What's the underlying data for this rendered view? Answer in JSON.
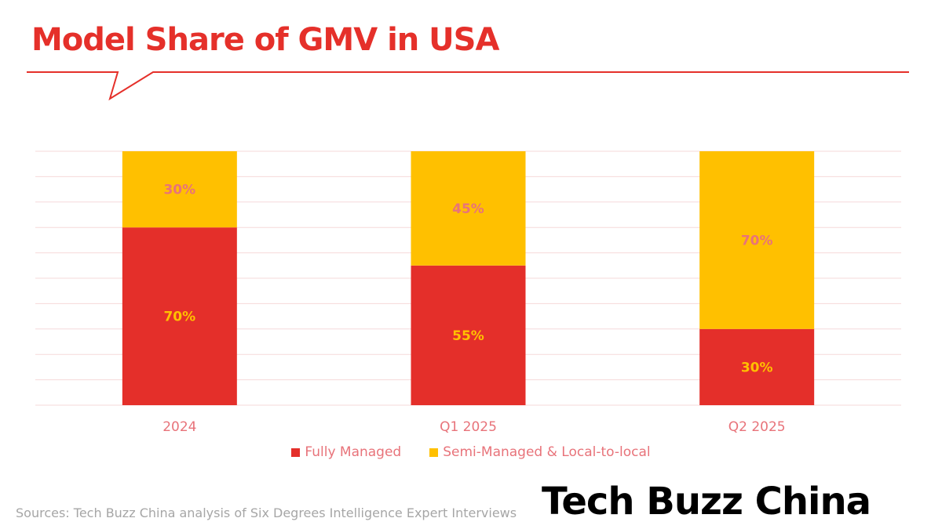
{
  "title": "Model Share of GMV in USA",
  "source": "Sources: Tech Buzz China analysis of Six Degrees Intelligence Expert Interviews",
  "logo": "Tech Buzz China",
  "colors": {
    "fully": "#e42f2a",
    "semi": "#ffc000",
    "label_on_red": "#ffc000",
    "label_on_yellow": "#e8737a",
    "axis_text": "#e8737a",
    "grid": "#f6d9da",
    "accent": "#e5302a"
  },
  "chart_data": {
    "type": "bar",
    "stacked": true,
    "title": "Model Share of GMV in USA",
    "categories": [
      "2024",
      "Q1 2025",
      "Q2 2025"
    ],
    "series": [
      {
        "name": "Fully Managed",
        "values": [
          70,
          55,
          30
        ],
        "labels": [
          "70%",
          "55%",
          "30%"
        ]
      },
      {
        "name": "Semi-Managed & Local-to-local",
        "values": [
          30,
          45,
          70
        ],
        "labels": [
          "30%",
          "45%",
          "70%"
        ]
      }
    ],
    "ylim": [
      0,
      100
    ],
    "grid": true,
    "legend": "bottom"
  }
}
